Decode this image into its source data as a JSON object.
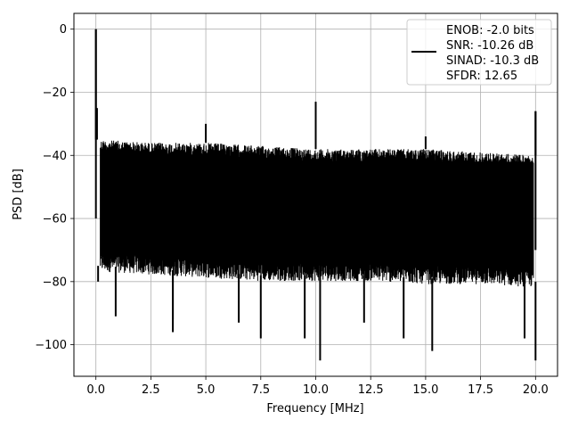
{
  "chart_data": {
    "type": "line",
    "xlabel": "Frequency [MHz]",
    "ylabel": "PSD [dB]",
    "xlim": [
      -1.0,
      21.0
    ],
    "ylim": [
      -110,
      5
    ],
    "xticks": [
      0.0,
      2.5,
      5.0,
      7.5,
      10.0,
      12.5,
      15.0,
      17.5,
      20.0
    ],
    "xtick_labels": [
      "0.0",
      "2.5",
      "5.0",
      "7.5",
      "10.0",
      "12.5",
      "15.0",
      "17.5",
      "20.0"
    ],
    "yticks": [
      0,
      -20,
      -40,
      -60,
      -80,
      -100
    ],
    "ytick_labels": [
      "0",
      "−20",
      "−40",
      "−60",
      "−80",
      "−100"
    ],
    "grid": true,
    "legend_placement": "upper-right",
    "series": [
      {
        "name": "ENOB: -2.0 bits\nSNR: -10.26 dB\nSINAD: -10.3 dB\nSFDR: 12.65",
        "legend_lines": [
          "ENOB: -2.0 bits",
          "SNR: -10.26 dB",
          "SINAD: -10.3 dB",
          "SFDR: 12.65"
        ],
        "color": "#000000",
        "noise_floor_x": [
          0.2,
          2.5,
          5.0,
          7.5,
          10.0,
          12.5,
          15.0,
          17.5,
          19.9
        ],
        "noise_floor_top_db": [
          -35,
          -36,
          -36,
          -37,
          -38,
          -38,
          -38,
          -39,
          -40
        ],
        "noise_floor_bottom_db": [
          -75,
          -76,
          -77,
          -78,
          -78,
          -78,
          -79,
          -79,
          -80
        ],
        "spikes": [
          {
            "x": 0.0,
            "y": 0.0
          },
          {
            "x": 0.05,
            "y": -25
          },
          {
            "x": 5.0,
            "y": -30
          },
          {
            "x": 10.0,
            "y": -23
          },
          {
            "x": 15.0,
            "y": -34
          },
          {
            "x": 20.0,
            "y": -26
          }
        ],
        "dips": [
          {
            "x": 0.1,
            "y": -80
          },
          {
            "x": 0.9,
            "y": -91
          },
          {
            "x": 3.5,
            "y": -92
          },
          {
            "x": 3.5,
            "y": -96
          },
          {
            "x": 6.5,
            "y": -93
          },
          {
            "x": 7.5,
            "y": -98
          },
          {
            "x": 9.5,
            "y": -98
          },
          {
            "x": 10.2,
            "y": -105
          },
          {
            "x": 12.2,
            "y": -93
          },
          {
            "x": 14.0,
            "y": -98
          },
          {
            "x": 15.3,
            "y": -102
          },
          {
            "x": 19.5,
            "y": -98
          },
          {
            "x": 20.0,
            "y": -105
          }
        ]
      }
    ]
  }
}
